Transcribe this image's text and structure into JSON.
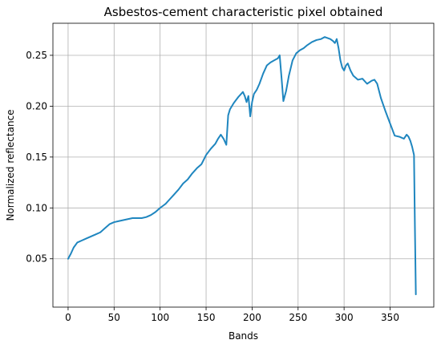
{
  "chart_data": {
    "type": "line",
    "title": "Asbestos-cement characteristic pixel obtained",
    "xlabel": "Bands",
    "ylabel": "Normalized reflectance",
    "xlim": [
      -16.5,
      397.5
    ],
    "ylim": [
      0.0025,
      0.2815
    ],
    "xticks": [
      0,
      50,
      100,
      150,
      200,
      250,
      300,
      350
    ],
    "yticks": [
      0.05,
      0.1,
      0.15,
      0.2,
      0.25
    ],
    "ytick_labels": [
      "0.05",
      "0.10",
      "0.15",
      "0.20",
      "0.25"
    ],
    "grid": true,
    "color": "#1f86bf",
    "series": [
      {
        "x": [
          0,
          3,
          6,
          10,
          15,
          20,
          25,
          30,
          35,
          40,
          45,
          50,
          55,
          60,
          65,
          70,
          75,
          80,
          85,
          90,
          95,
          100,
          103,
          106,
          110,
          115,
          120,
          125,
          130,
          135,
          140,
          145,
          150,
          155,
          160,
          163,
          166,
          169,
          172,
          174,
          176,
          180,
          185,
          190,
          192,
          194,
          196,
          198,
          200,
          202,
          205,
          208,
          212,
          216,
          220,
          224,
          228,
          230,
          232,
          234,
          237,
          240,
          244,
          248,
          252,
          256,
          260,
          265,
          270,
          275,
          279,
          282,
          285,
          288,
          290,
          292,
          294,
          296,
          298,
          300,
          302,
          304,
          307,
          310,
          315,
          320,
          325,
          330,
          333,
          336,
          340,
          345,
          350,
          355,
          360,
          365,
          368,
          370,
          372,
          374,
          376,
          377,
          378
        ],
        "y": [
          0.05,
          0.055,
          0.061,
          0.066,
          0.068,
          0.07,
          0.072,
          0.074,
          0.076,
          0.08,
          0.084,
          0.086,
          0.087,
          0.088,
          0.089,
          0.09,
          0.09,
          0.09,
          0.091,
          0.093,
          0.096,
          0.1,
          0.102,
          0.104,
          0.108,
          0.113,
          0.118,
          0.124,
          0.128,
          0.134,
          0.139,
          0.143,
          0.152,
          0.158,
          0.163,
          0.168,
          0.172,
          0.168,
          0.162,
          0.191,
          0.197,
          0.203,
          0.209,
          0.214,
          0.21,
          0.204,
          0.21,
          0.19,
          0.204,
          0.212,
          0.216,
          0.222,
          0.232,
          0.24,
          0.243,
          0.245,
          0.247,
          0.25,
          0.228,
          0.205,
          0.215,
          0.23,
          0.245,
          0.252,
          0.255,
          0.257,
          0.26,
          0.263,
          0.265,
          0.266,
          0.268,
          0.267,
          0.266,
          0.264,
          0.262,
          0.266,
          0.257,
          0.245,
          0.238,
          0.235,
          0.24,
          0.242,
          0.235,
          0.23,
          0.226,
          0.227,
          0.222,
          0.225,
          0.226,
          0.222,
          0.208,
          0.195,
          0.183,
          0.171,
          0.17,
          0.168,
          0.172,
          0.17,
          0.166,
          0.16,
          0.152,
          0.08,
          0.015
        ]
      }
    ]
  }
}
